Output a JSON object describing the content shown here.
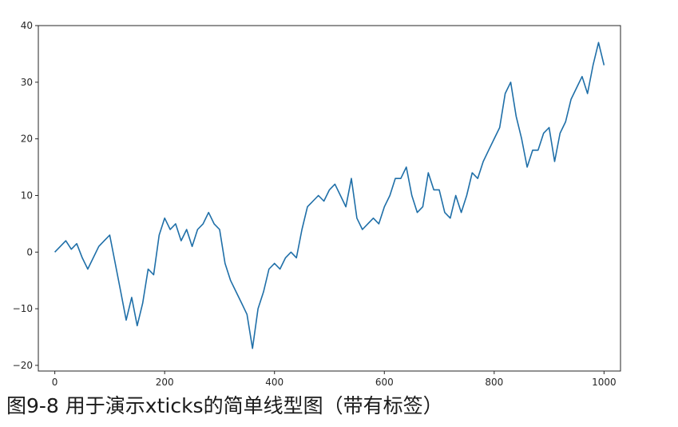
{
  "caption": "图9-8 用于演示xticks的简单线型图（带有标签）",
  "colors": {
    "line": "#1f6fa8",
    "axes": "#262626",
    "background": "#ffffff"
  },
  "chart_data": {
    "type": "line",
    "title": "",
    "xlabel": "",
    "ylabel": "",
    "xlim": [
      -30,
      1030
    ],
    "ylim": [
      -21,
      40
    ],
    "grid": false,
    "xticks": [
      0,
      200,
      400,
      600,
      800,
      1000
    ],
    "yticks": [
      -20,
      -10,
      0,
      10,
      20,
      30,
      40
    ],
    "xtick_labels": [
      "0",
      "200",
      "400",
      "600",
      "800",
      "1000"
    ],
    "ytick_labels": [
      "−20",
      "−10",
      "0",
      "10",
      "20",
      "30",
      "40"
    ],
    "series": [
      {
        "color": "#1f6fa8",
        "x": [
          0,
          10,
          20,
          30,
          40,
          50,
          60,
          70,
          80,
          90,
          100,
          110,
          120,
          130,
          140,
          150,
          160,
          170,
          180,
          190,
          200,
          210,
          220,
          230,
          240,
          250,
          260,
          270,
          280,
          290,
          300,
          310,
          320,
          330,
          340,
          350,
          360,
          370,
          380,
          390,
          400,
          410,
          420,
          430,
          440,
          450,
          460,
          470,
          480,
          490,
          500,
          510,
          520,
          530,
          540,
          550,
          560,
          570,
          580,
          590,
          600,
          610,
          620,
          630,
          640,
          650,
          660,
          670,
          680,
          690,
          700,
          710,
          720,
          730,
          740,
          750,
          760,
          770,
          780,
          790,
          800,
          810,
          820,
          830,
          840,
          850,
          860,
          870,
          880,
          890,
          900,
          910,
          920,
          930,
          940,
          950,
          960,
          970,
          980,
          990,
          1000
        ],
        "y": [
          0,
          1,
          2,
          0.5,
          1.5,
          -1,
          -3,
          -1,
          1,
          2,
          3,
          -2,
          -7,
          -12,
          -8,
          -13,
          -9,
          -3,
          -4,
          3,
          6,
          4,
          5,
          2,
          4,
          1,
          4,
          5,
          7,
          5,
          4,
          -2,
          -5,
          -7,
          -9,
          -11,
          -17,
          -10,
          -7,
          -3,
          -2,
          -3,
          -1,
          0,
          -1,
          4,
          8,
          9,
          10,
          9,
          11,
          12,
          10,
          8,
          13,
          6,
          4,
          5,
          6,
          5,
          8,
          10,
          13,
          13,
          15,
          10,
          7,
          8,
          14,
          11,
          11,
          7,
          6,
          10,
          7,
          10,
          14,
          13,
          16,
          18,
          20,
          22,
          28,
          30,
          24,
          20,
          15,
          18,
          18,
          21,
          22,
          16,
          21,
          23,
          27,
          29,
          31,
          28,
          33,
          37,
          33
        ]
      }
    ]
  }
}
